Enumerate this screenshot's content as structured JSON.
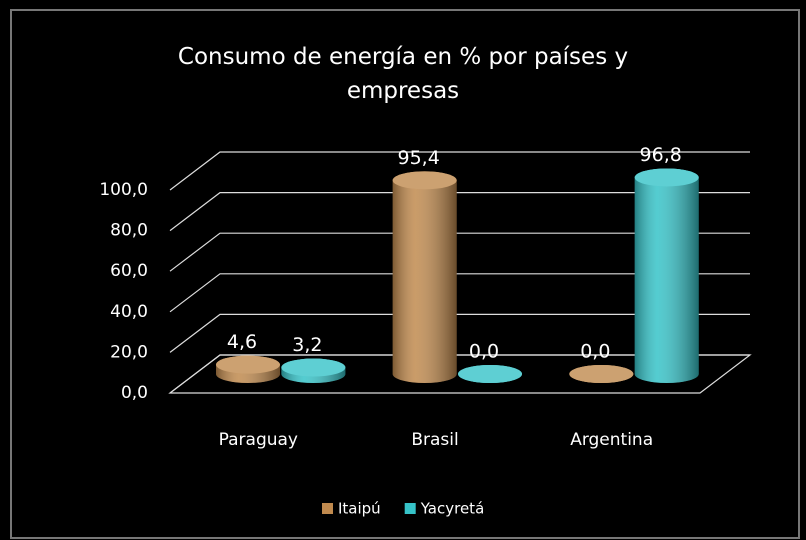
{
  "chart_data": {
    "type": "bar3d",
    "title": "Consumo de energía en % por países y empresas",
    "categories": [
      "Paraguay",
      "Brasil",
      "Argentina"
    ],
    "series": [
      {
        "name": "Itaipú",
        "color": "#c08a4e",
        "values": [
          4.6,
          95.4,
          0.0
        ],
        "value_labels": [
          "4,6",
          "95,4",
          "0,0"
        ]
      },
      {
        "name": "Yacyretá",
        "color": "#36c3c8",
        "values": [
          3.2,
          0.0,
          96.8
        ],
        "value_labels": [
          "3,2",
          "0,0",
          "96,8"
        ]
      }
    ],
    "ylim": [
      0,
      100
    ],
    "yticks": [
      {
        "value": 0,
        "label": "0,0"
      },
      {
        "value": 20,
        "label": "20,0"
      },
      {
        "value": 40,
        "label": "40,0"
      },
      {
        "value": 60,
        "label": "60,0"
      },
      {
        "value": 80,
        "label": "80,0"
      },
      {
        "value": 100,
        "label": "100,0"
      }
    ],
    "grid": true,
    "legend": "bottom"
  }
}
